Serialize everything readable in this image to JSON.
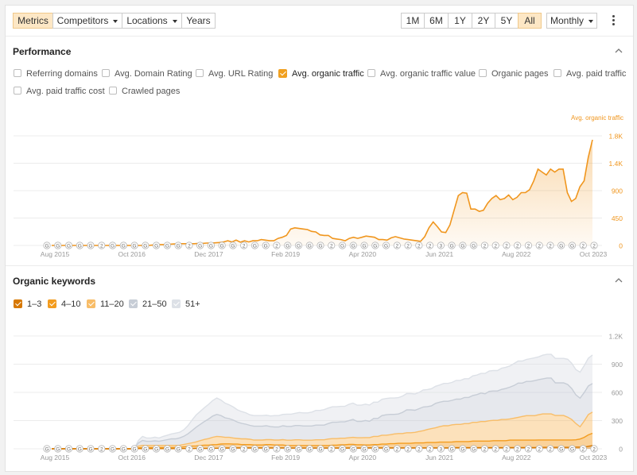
{
  "toolbar": {
    "tabs": [
      {
        "label": "Metrics",
        "active": true
      },
      {
        "label": "Competitors",
        "dropdown": true
      },
      {
        "label": "Locations",
        "dropdown": true
      },
      {
        "label": "Years"
      }
    ],
    "ranges": [
      {
        "label": "1M"
      },
      {
        "label": "6M"
      },
      {
        "label": "1Y"
      },
      {
        "label": "2Y"
      },
      {
        "label": "5Y"
      },
      {
        "label": "All",
        "active": true
      }
    ],
    "interval": {
      "label": "Monthly",
      "icon": "chevron-down-icon"
    },
    "more_icon": "kebab-menu-icon"
  },
  "performance": {
    "title": "Performance",
    "collapse_icon": "chevron-up-icon",
    "metrics": [
      {
        "label": "Referring domains",
        "checked": false
      },
      {
        "label": "Avg. Domain Rating",
        "checked": false
      },
      {
        "label": "Avg. URL Rating",
        "checked": false
      },
      {
        "label": "Avg. organic traffic",
        "checked": true,
        "color": "#f0a020"
      },
      {
        "label": "Avg. organic traffic value",
        "checked": false
      },
      {
        "label": "Organic pages",
        "checked": false
      },
      {
        "label": "Avg. paid traffic",
        "checked": false
      },
      {
        "label": "Avg. paid traffic cost",
        "checked": false
      },
      {
        "label": "Crawled pages",
        "checked": false
      }
    ]
  },
  "organic_keywords": {
    "title": "Organic keywords",
    "collapse_icon": "chevron-up-icon",
    "legend": [
      {
        "label": "1–3",
        "color": "#d77800"
      },
      {
        "label": "4–10",
        "color": "#f39c1e"
      },
      {
        "label": "11–20",
        "color": "#f8bd68"
      },
      {
        "label": "21–50",
        "color": "#c7cdd6"
      },
      {
        "label": "51+",
        "color": "#dde1e7"
      }
    ]
  },
  "chart_data": [
    {
      "type": "area",
      "series": [
        {
          "name": "Avg. organic traffic",
          "color": "#f0961e",
          "values": [
            0,
            0,
            0,
            0,
            0,
            0,
            0,
            0,
            0,
            0,
            0,
            0,
            0,
            0,
            0,
            0,
            0,
            0,
            0,
            0,
            0,
            0,
            0,
            0,
            5,
            10,
            15,
            15,
            20,
            25,
            28,
            30,
            30,
            30,
            30,
            35,
            35,
            40,
            40,
            45,
            50,
            60,
            80,
            60,
            90,
            55,
            80,
            60,
            80,
            80,
            100,
            90,
            80,
            80,
            120,
            140,
            170,
            280,
            300,
            290,
            280,
            270,
            240,
            230,
            180,
            170,
            170,
            120,
            110,
            100,
            80,
            120,
            140,
            120,
            140,
            160,
            150,
            140,
            100,
            100,
            90,
            130,
            150,
            130,
            110,
            100,
            90,
            80,
            70,
            150,
            300,
            400,
            320,
            230,
            220,
            350,
            600,
            850,
            900,
            890,
            620,
            620,
            580,
            600,
            720,
            800,
            850,
            780,
            800,
            860,
            780,
            820,
            900,
            900,
            950,
            1100,
            1300,
            1250,
            1200,
            1300,
            1250,
            1300,
            1300,
            900,
            750,
            800,
            1000,
            1100,
            1500,
            1800
          ]
        }
      ],
      "x_tick_labels": [
        "Aug 2015",
        "Oct 2016",
        "Dec 2017",
        "Feb 2019",
        "Apr 2020",
        "Jun 2021",
        "Aug 2022",
        "Oct 2023"
      ],
      "y_ticks": [
        "1.8K",
        "1.4K",
        "900",
        "450",
        "0"
      ],
      "ylabel": "Avg. organic traffic",
      "ylim": [
        0,
        2030
      ],
      "annotation_markers": [
        "G",
        "G",
        "G",
        "G",
        "G",
        "2",
        "G",
        "G",
        "G",
        "G",
        "G",
        "G",
        "G",
        "2",
        "G",
        "G",
        "G",
        "G",
        "2",
        "G",
        "G",
        "2",
        "G",
        "G",
        "G",
        "G",
        "2",
        "G",
        "G",
        "G",
        "G",
        "G",
        "2",
        "2",
        "2",
        "2",
        "3",
        "G",
        "G",
        "G",
        "2",
        "2",
        "2",
        "2",
        "2",
        "2",
        "2",
        "G",
        "G",
        "2",
        "2"
      ]
    },
    {
      "type": "area",
      "stacked": true,
      "series": [
        {
          "name": "1–3",
          "color": "#d77800",
          "values": [
            0,
            0,
            0,
            0,
            0,
            0,
            0,
            0,
            0,
            0,
            0,
            0,
            0,
            0,
            0,
            0,
            0,
            0,
            0,
            0,
            0,
            2,
            2,
            2,
            2,
            2,
            2,
            2,
            2,
            2,
            2,
            3,
            3,
            3,
            3,
            5,
            5,
            5,
            5,
            6,
            7,
            8,
            10,
            10,
            12,
            12,
            12,
            12,
            12,
            12,
            12,
            12,
            12,
            12,
            12,
            12,
            12,
            10,
            10,
            10,
            10,
            10,
            10,
            10,
            10,
            10,
            10,
            10,
            10,
            10,
            10,
            10,
            10,
            10,
            10,
            10,
            12,
            12,
            12,
            12,
            12,
            12,
            12,
            12,
            12,
            12,
            12,
            12,
            12,
            12,
            12,
            12,
            12,
            12,
            12,
            12,
            12,
            14,
            14,
            14,
            14,
            14,
            14,
            14,
            14,
            14,
            14,
            14,
            14,
            14,
            14,
            16,
            16,
            16,
            16,
            16,
            16,
            16,
            18,
            18,
            18,
            18,
            18,
            18,
            18,
            18,
            18,
            20,
            20,
            20,
            30,
            40
          ]
        },
        {
          "name": "4–10",
          "color": "#f39c1e",
          "values": [
            0,
            0,
            0,
            0,
            0,
            0,
            0,
            0,
            0,
            0,
            0,
            0,
            0,
            0,
            0,
            0,
            0,
            0,
            0,
            0,
            0,
            10,
            15,
            15,
            15,
            15,
            15,
            15,
            15,
            15,
            15,
            15,
            20,
            25,
            30,
            30,
            35,
            40,
            40,
            45,
            45,
            50,
            50,
            50,
            45,
            45,
            40,
            40,
            40,
            35,
            35,
            35,
            40,
            40,
            35,
            35,
            35,
            30,
            30,
            30,
            30,
            30,
            30,
            30,
            30,
            30,
            30,
            30,
            35,
            35,
            40,
            40,
            45,
            45,
            40,
            40,
            35,
            35,
            40,
            40,
            45,
            45,
            50,
            50,
            55,
            55,
            55,
            55,
            60,
            60,
            60,
            65,
            65,
            65,
            70,
            70,
            70,
            70,
            75,
            75,
            75,
            75,
            80,
            80,
            80,
            80,
            80,
            85,
            85,
            85,
            85,
            90,
            90,
            90,
            90,
            90,
            90,
            90,
            90,
            90,
            90,
            90,
            90,
            90,
            90,
            90,
            90,
            90,
            100,
            120,
            140,
            150,
            160
          ]
        },
        {
          "name": "11–20",
          "color": "#f8bd68",
          "values": [
            0,
            0,
            0,
            0,
            0,
            0,
            0,
            0,
            0,
            0,
            0,
            0,
            0,
            0,
            0,
            0,
            0,
            0,
            0,
            0,
            0,
            20,
            25,
            25,
            25,
            25,
            25,
            25,
            25,
            25,
            25,
            25,
            30,
            35,
            40,
            50,
            60,
            70,
            80,
            90,
            100,
            90,
            80,
            80,
            75,
            70,
            70,
            70,
            65,
            60,
            60,
            60,
            60,
            60,
            60,
            60,
            65,
            65,
            65,
            70,
            70,
            65,
            65,
            65,
            70,
            70,
            70,
            80,
            80,
            80,
            80,
            80,
            80,
            85,
            85,
            85,
            90,
            90,
            100,
            100,
            110,
            110,
            110,
            120,
            120,
            120,
            130,
            130,
            130,
            140,
            150,
            160,
            170,
            180,
            190,
            200,
            200,
            210,
            210,
            210,
            220,
            220,
            230,
            230,
            240,
            240,
            250,
            250,
            250,
            260,
            260,
            260,
            270,
            280,
            290,
            300,
            300,
            300,
            310,
            320,
            320,
            320,
            300,
            300,
            300,
            280,
            250,
            200,
            150,
            200,
            250,
            260,
            270
          ]
        },
        {
          "name": "21–50",
          "color": "#c7cdd6",
          "values": [
            0,
            0,
            0,
            0,
            0,
            0,
            0,
            0,
            0,
            0,
            0,
            0,
            0,
            0,
            0,
            0,
            0,
            0,
            0,
            0,
            0,
            40,
            60,
            50,
            50,
            55,
            50,
            60,
            70,
            80,
            80,
            90,
            100,
            120,
            150,
            180,
            200,
            220,
            240,
            260,
            270,
            260,
            240,
            230,
            220,
            200,
            190,
            180,
            170,
            170,
            170,
            170,
            170,
            160,
            160,
            160,
            170,
            170,
            170,
            175,
            175,
            175,
            175,
            175,
            180,
            180,
            180,
            190,
            200,
            200,
            200,
            200,
            210,
            220,
            200,
            200,
            210,
            200,
            220,
            220,
            240,
            250,
            250,
            240,
            240,
            260,
            280,
            280,
            270,
            280,
            290,
            280,
            280,
            300,
            300,
            300,
            300,
            300,
            310,
            310,
            320,
            320,
            330,
            340,
            350,
            340,
            360,
            360,
            360,
            370,
            380,
            390,
            400,
            420,
            410,
            420,
            420,
            430,
            430,
            430,
            440,
            440,
            400,
            400,
            400,
            400,
            380,
            350,
            350,
            350,
            350,
            350,
            350
          ]
        },
        {
          "name": "51+",
          "color": "#dde1e7",
          "values": [
            0,
            0,
            0,
            0,
            0,
            0,
            0,
            0,
            0,
            0,
            0,
            0,
            0,
            0,
            0,
            0,
            0,
            0,
            0,
            0,
            0,
            30,
            50,
            40,
            40,
            45,
            40,
            50,
            55,
            60,
            70,
            70,
            80,
            100,
            130,
            150,
            160,
            170,
            180,
            190,
            200,
            190,
            180,
            170,
            160,
            150,
            145,
            140,
            130,
            130,
            130,
            130,
            130,
            130,
            140,
            140,
            140,
            150,
            150,
            150,
            160,
            160,
            160,
            170,
            180,
            180,
            190,
            190,
            190,
            190,
            190,
            190,
            200,
            200,
            200,
            200,
            200,
            200,
            200,
            200,
            200,
            200,
            200,
            200,
            200,
            200,
            200,
            200,
            200,
            200,
            210,
            210,
            210,
            210,
            210,
            220,
            220,
            220,
            230,
            230,
            230,
            230,
            240,
            240,
            240,
            250,
            250,
            250,
            250,
            260,
            260,
            260,
            270,
            270,
            270,
            270,
            280,
            280,
            280,
            290,
            290,
            290,
            300,
            300,
            300,
            310,
            310,
            310,
            320,
            330,
            340,
            350,
            350
          ]
        }
      ],
      "x_tick_labels": [
        "Aug 2015",
        "Oct 2016",
        "Dec 2017",
        "Feb 2019",
        "Apr 2020",
        "Jun 2021",
        "Aug 2022",
        "Oct 2023"
      ],
      "y_ticks": [
        "1.2K",
        "900",
        "600",
        "300",
        "0"
      ],
      "ylim": [
        0,
        1500
      ],
      "annotation_markers": [
        "G",
        "G",
        "G",
        "G",
        "G",
        "2",
        "G",
        "G",
        "G",
        "G",
        "G",
        "G",
        "G",
        "2",
        "G",
        "G",
        "G",
        "G",
        "2",
        "G",
        "G",
        "2",
        "G",
        "G",
        "G",
        "G",
        "2",
        "G",
        "G",
        "G",
        "G",
        "G",
        "2",
        "2",
        "2",
        "2",
        "3",
        "G",
        "G",
        "G",
        "2",
        "2",
        "2",
        "2",
        "2",
        "2",
        "2",
        "G",
        "G",
        "2",
        "2"
      ]
    }
  ]
}
